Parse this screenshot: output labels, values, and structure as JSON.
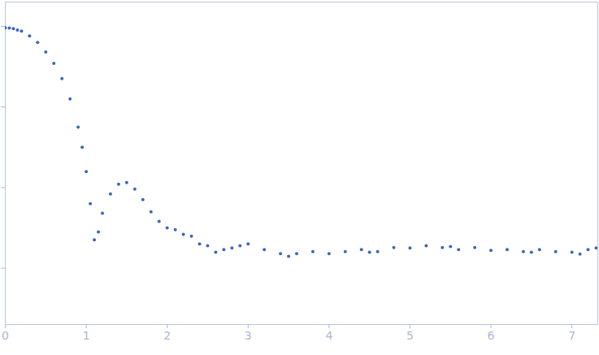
{
  "chart_data": {
    "type": "scatter",
    "x": [
      0,
      0.05,
      0.1,
      0.15,
      0.2,
      0.3,
      0.4,
      0.5,
      0.6,
      0.7,
      0.8,
      0.9,
      0.95,
      1.0,
      1.05,
      1.1,
      1.15,
      1.2,
      1.3,
      1.4,
      1.5,
      1.6,
      1.7,
      1.8,
      1.9,
      2.0,
      2.1,
      2.2,
      2.3,
      2.4,
      2.5,
      2.6,
      2.7,
      2.8,
      2.9,
      3.0,
      3.2,
      3.4,
      3.5,
      3.6,
      3.8,
      4.0,
      4.2,
      4.4,
      4.5,
      4.6,
      4.8,
      5.0,
      5.2,
      5.4,
      5.5,
      5.6,
      5.8,
      6.0,
      6.2,
      6.4,
      6.5,
      6.6,
      6.8,
      7.0,
      7.1,
      7.2,
      7.3
    ],
    "values": [
      0.955,
      0.95,
      0.933,
      0.9,
      0.871,
      0.759,
      0.631,
      0.479,
      0.347,
      0.224,
      0.126,
      0.0562,
      0.0316,
      0.0158,
      0.00631,
      0.00224,
      0.00282,
      0.00479,
      0.00832,
      0.011,
      0.0115,
      0.00955,
      0.00708,
      0.00501,
      0.0038,
      0.00316,
      0.003,
      0.00263,
      0.0025,
      0.002,
      0.0019,
      0.00158,
      0.0017,
      0.00178,
      0.0019,
      0.002,
      0.0017,
      0.00151,
      0.0014,
      0.00151,
      0.0016,
      0.00151,
      0.0016,
      0.0017,
      0.00158,
      0.0016,
      0.0018,
      0.00178,
      0.0019,
      0.0018,
      0.00186,
      0.0017,
      0.0018,
      0.00166,
      0.0017,
      0.0016,
      0.00158,
      0.0017,
      0.0016,
      0.00158,
      0.0015,
      0.0017,
      0.00178
    ],
    "color": "#3b68b8",
    "marker": "circle",
    "log": "y",
    "xlim": [
      0,
      7.32
    ],
    "xticks": [
      0,
      1,
      2,
      3,
      4,
      5,
      6,
      7
    ],
    "ylim": [
      0.0002,
      2
    ],
    "yticks": [
      0.001,
      0.01,
      0.1,
      1
    ],
    "tick_labels": "x",
    "grid": false
  }
}
